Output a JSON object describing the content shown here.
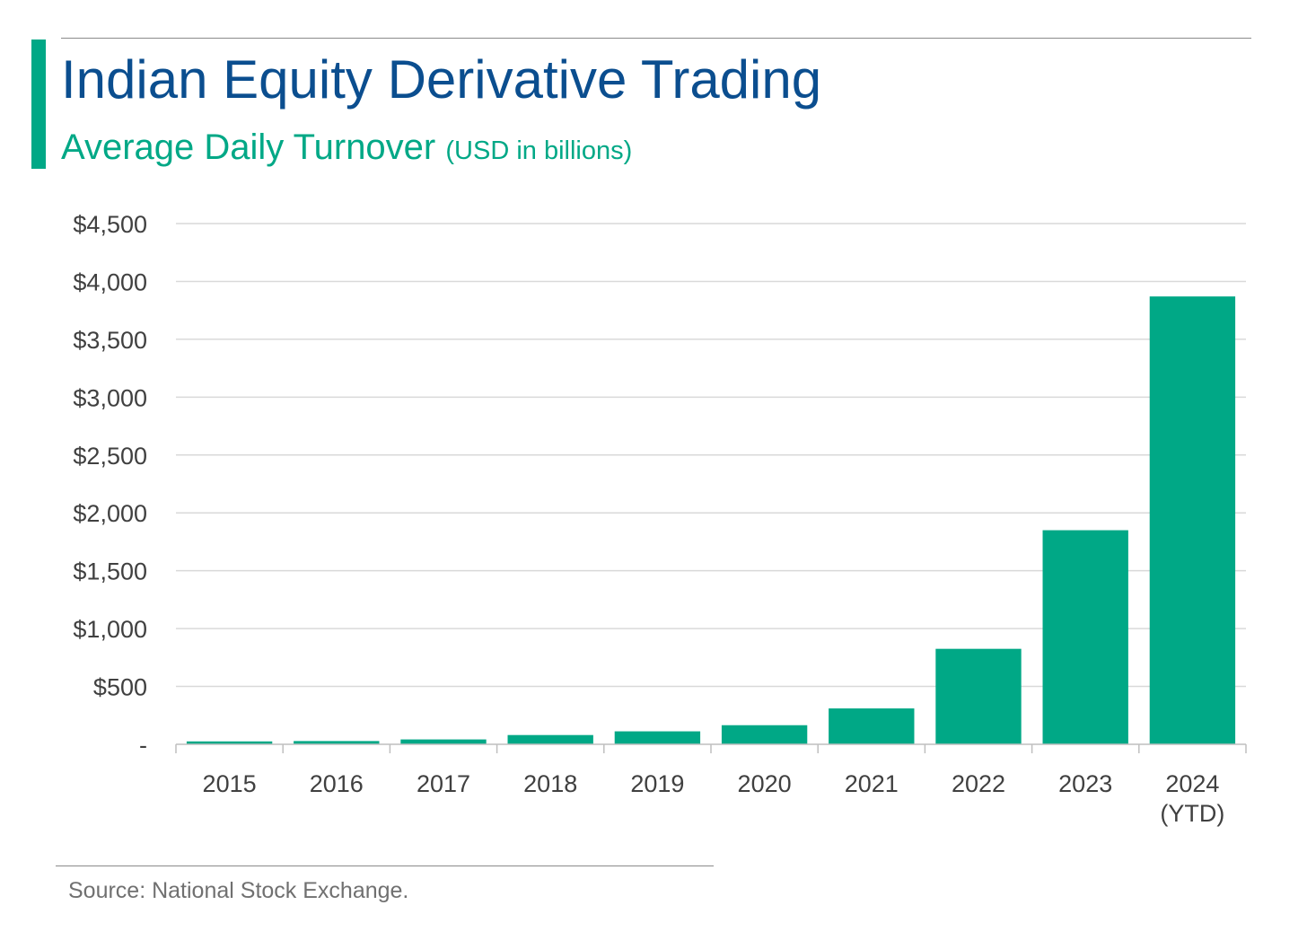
{
  "header": {
    "title": "Indian Equity Derivative Trading",
    "subtitle": "Average Daily Turnover",
    "subtitle_units": "(USD in billions)"
  },
  "colors": {
    "title": "#0b4e8f",
    "accent": "#00a886",
    "bar": "#00a886",
    "gridline": "#d9d9d9",
    "axis": "#bfbfbf",
    "tick_text": "#404040"
  },
  "chart_data": {
    "type": "bar",
    "title": "Indian Equity Derivative Trading",
    "subtitle": "Average Daily Turnover (USD in billions)",
    "xlabel": "",
    "ylabel": "",
    "ylim": [
      0,
      4500
    ],
    "grid": true,
    "legend": "none",
    "categories": [
      "2015",
      "2016",
      "2017",
      "2018",
      "2019",
      "2020",
      "2021",
      "2022",
      "2023",
      "2024\n(YTD)"
    ],
    "values": [
      25,
      28,
      42,
      80,
      112,
      165,
      310,
      825,
      1850,
      3870
    ],
    "y_ticks": [
      0,
      500,
      1000,
      1500,
      2000,
      2500,
      3000,
      3500,
      4000,
      4500
    ],
    "y_tick_labels": [
      "-",
      "$500",
      "$1,000",
      "$1,500",
      "$2,000",
      "$2,500",
      "$3,000",
      "$3,500",
      "$4,000",
      "$4,500"
    ]
  },
  "footer": {
    "source": "Source: National Stock Exchange."
  }
}
